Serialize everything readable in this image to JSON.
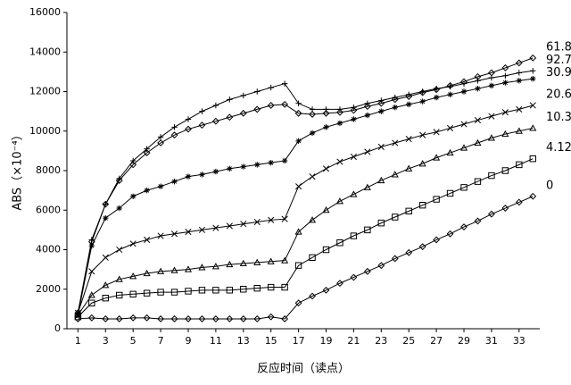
{
  "chart_data": {
    "type": "line",
    "y_label": "ABS（×10⁻⁴）",
    "x_label": "反应时间（读点）",
    "x": [
      1,
      2,
      3,
      4,
      5,
      6,
      7,
      8,
      9,
      10,
      11,
      12,
      13,
      14,
      15,
      16,
      17,
      18,
      19,
      20,
      21,
      22,
      23,
      24,
      25,
      26,
      27,
      28,
      29,
      30,
      31,
      32,
      33,
      34
    ],
    "xlim": [
      0.2,
      34.5
    ],
    "xticks": [
      1,
      3,
      5,
      7,
      9,
      11,
      13,
      15,
      17,
      19,
      21,
      23,
      25,
      27,
      29,
      31,
      33
    ],
    "ylim": [
      0,
      16000
    ],
    "yticks": [
      0,
      2000,
      4000,
      6000,
      8000,
      10000,
      12000,
      14000,
      16000
    ],
    "series": [
      {
        "name": "61.8",
        "color": "#000000",
        "marker": "diamond",
        "values": [
          800,
          4400,
          6300,
          7500,
          8300,
          8900,
          9400,
          9800,
          10100,
          10300,
          10500,
          10700,
          10900,
          11100,
          11300,
          11350,
          10900,
          10850,
          10900,
          10950,
          11050,
          11250,
          11400,
          11600,
          11750,
          11950,
          12100,
          12300,
          12500,
          12750,
          12950,
          13200,
          13450,
          13700
        ]
      },
      {
        "name": "92.7",
        "color": "#000000",
        "marker": "plus",
        "values": [
          800,
          4500,
          6300,
          7600,
          8500,
          9100,
          9700,
          10200,
          10600,
          11000,
          11300,
          11600,
          11800,
          12000,
          12200,
          12400,
          11400,
          11100,
          11100,
          11100,
          11200,
          11400,
          11550,
          11700,
          11850,
          12000,
          12150,
          12250,
          12400,
          12550,
          12700,
          12800,
          12950,
          13050
        ]
      },
      {
        "name": "30.9",
        "color": "#000000",
        "marker": "asterisk",
        "values": [
          700,
          4200,
          5600,
          6100,
          6700,
          7000,
          7200,
          7450,
          7700,
          7800,
          7950,
          8100,
          8200,
          8300,
          8400,
          8500,
          9500,
          9900,
          10200,
          10400,
          10600,
          10800,
          11000,
          11200,
          11350,
          11500,
          11700,
          11850,
          12000,
          12150,
          12300,
          12450,
          12550,
          12650
        ]
      },
      {
        "name": "20.6",
        "color": "#000000",
        "marker": "cross",
        "values": [
          800,
          2900,
          3600,
          4000,
          4300,
          4500,
          4700,
          4800,
          4900,
          5000,
          5100,
          5200,
          5300,
          5400,
          5500,
          5550,
          7200,
          7700,
          8100,
          8450,
          8700,
          8950,
          9200,
          9400,
          9600,
          9800,
          9950,
          10150,
          10350,
          10550,
          10750,
          10950,
          11100,
          11300
        ]
      },
      {
        "name": "10.3",
        "color": "#000000",
        "marker": "triangle",
        "values": [
          700,
          1700,
          2200,
          2500,
          2650,
          2800,
          2900,
          2950,
          3000,
          3100,
          3150,
          3250,
          3300,
          3350,
          3400,
          3450,
          4900,
          5500,
          6000,
          6450,
          6800,
          7150,
          7500,
          7800,
          8100,
          8350,
          8650,
          8900,
          9150,
          9400,
          9650,
          9850,
          10000,
          10150
        ]
      },
      {
        "name": "4.12",
        "color": "#000000",
        "marker": "square",
        "values": [
          600,
          1300,
          1550,
          1700,
          1750,
          1800,
          1850,
          1850,
          1900,
          1950,
          1950,
          1950,
          2000,
          2050,
          2100,
          2100,
          3200,
          3600,
          4000,
          4350,
          4700,
          5000,
          5350,
          5650,
          5950,
          6250,
          6550,
          6850,
          7150,
          7450,
          7750,
          8000,
          8300,
          8600
        ]
      },
      {
        "name": "0",
        "color": "#000000",
        "marker": "diamond",
        "values": [
          500,
          550,
          500,
          500,
          550,
          550,
          500,
          500,
          500,
          500,
          500,
          500,
          500,
          500,
          600,
          500,
          1300,
          1650,
          1950,
          2300,
          2600,
          2900,
          3200,
          3550,
          3850,
          4150,
          4500,
          4800,
          5150,
          5450,
          5800,
          6100,
          6400,
          6700
        ]
      }
    ]
  }
}
